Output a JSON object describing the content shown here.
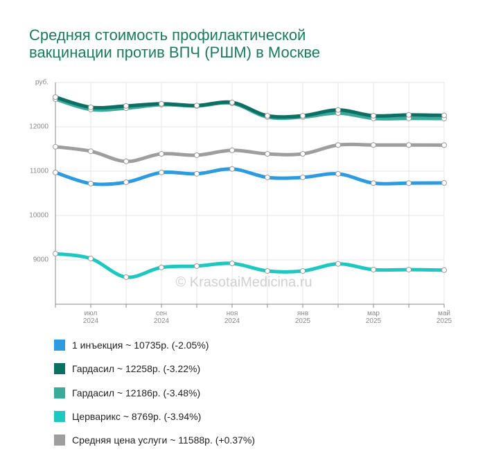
{
  "chart_data": {
    "type": "line",
    "title": "Средняя стоимость профилактической вакцинации против ВПЧ (РШМ) в Москве",
    "y_label": "руб.",
    "watermark": "© KrasotaiMedicina.ru",
    "categories": [
      null,
      "июл 2024",
      null,
      "сен 2024",
      null,
      "ноя 2024",
      null,
      "янв 2025",
      null,
      "мар 2025",
      null,
      "май 2025"
    ],
    "series": [
      {
        "name": "1 инъекция ~ 10735р. (-2.05%)",
        "color": "#2e9be0",
        "values": [
          10970,
          10720,
          10750,
          10970,
          10940,
          11050,
          10860,
          10860,
          10940,
          10730,
          10730,
          10735
        ]
      },
      {
        "name": "Гардасил ~ 12258р. (-3.22%)",
        "color": "#0d6e63",
        "values": [
          12670,
          12440,
          12470,
          12520,
          12480,
          12550,
          12250,
          12250,
          12380,
          12250,
          12270,
          12258
        ]
      },
      {
        "name": "Гардасил ~ 12186р. (-3.48%)",
        "color": "#3aaa9a",
        "values": [
          12625,
          12390,
          12420,
          12500,
          12470,
          12530,
          12220,
          12220,
          12310,
          12190,
          12190,
          12186
        ]
      },
      {
        "name": "Церварикс ~ 8769р. (-3.94%)",
        "color": "#1ec8c0",
        "values": [
          9140,
          9030,
          8610,
          8830,
          8860,
          8920,
          8750,
          8750,
          8910,
          8780,
          8780,
          8769
        ]
      },
      {
        "name": "Средняя цена услуги ~ 11588р. (+0.37%)",
        "color": "#9e9e9e",
        "values": [
          11550,
          11450,
          11220,
          11390,
          11360,
          11470,
          11390,
          11390,
          11590,
          11590,
          11590,
          11588
        ]
      }
    ],
    "draw_order": [
      4,
      0,
      3,
      2,
      1
    ],
    "ylim": [
      8000,
      13000
    ],
    "yticks": [
      9000,
      10000,
      11000,
      12000
    ],
    "grid": true,
    "legend": "bottom"
  }
}
